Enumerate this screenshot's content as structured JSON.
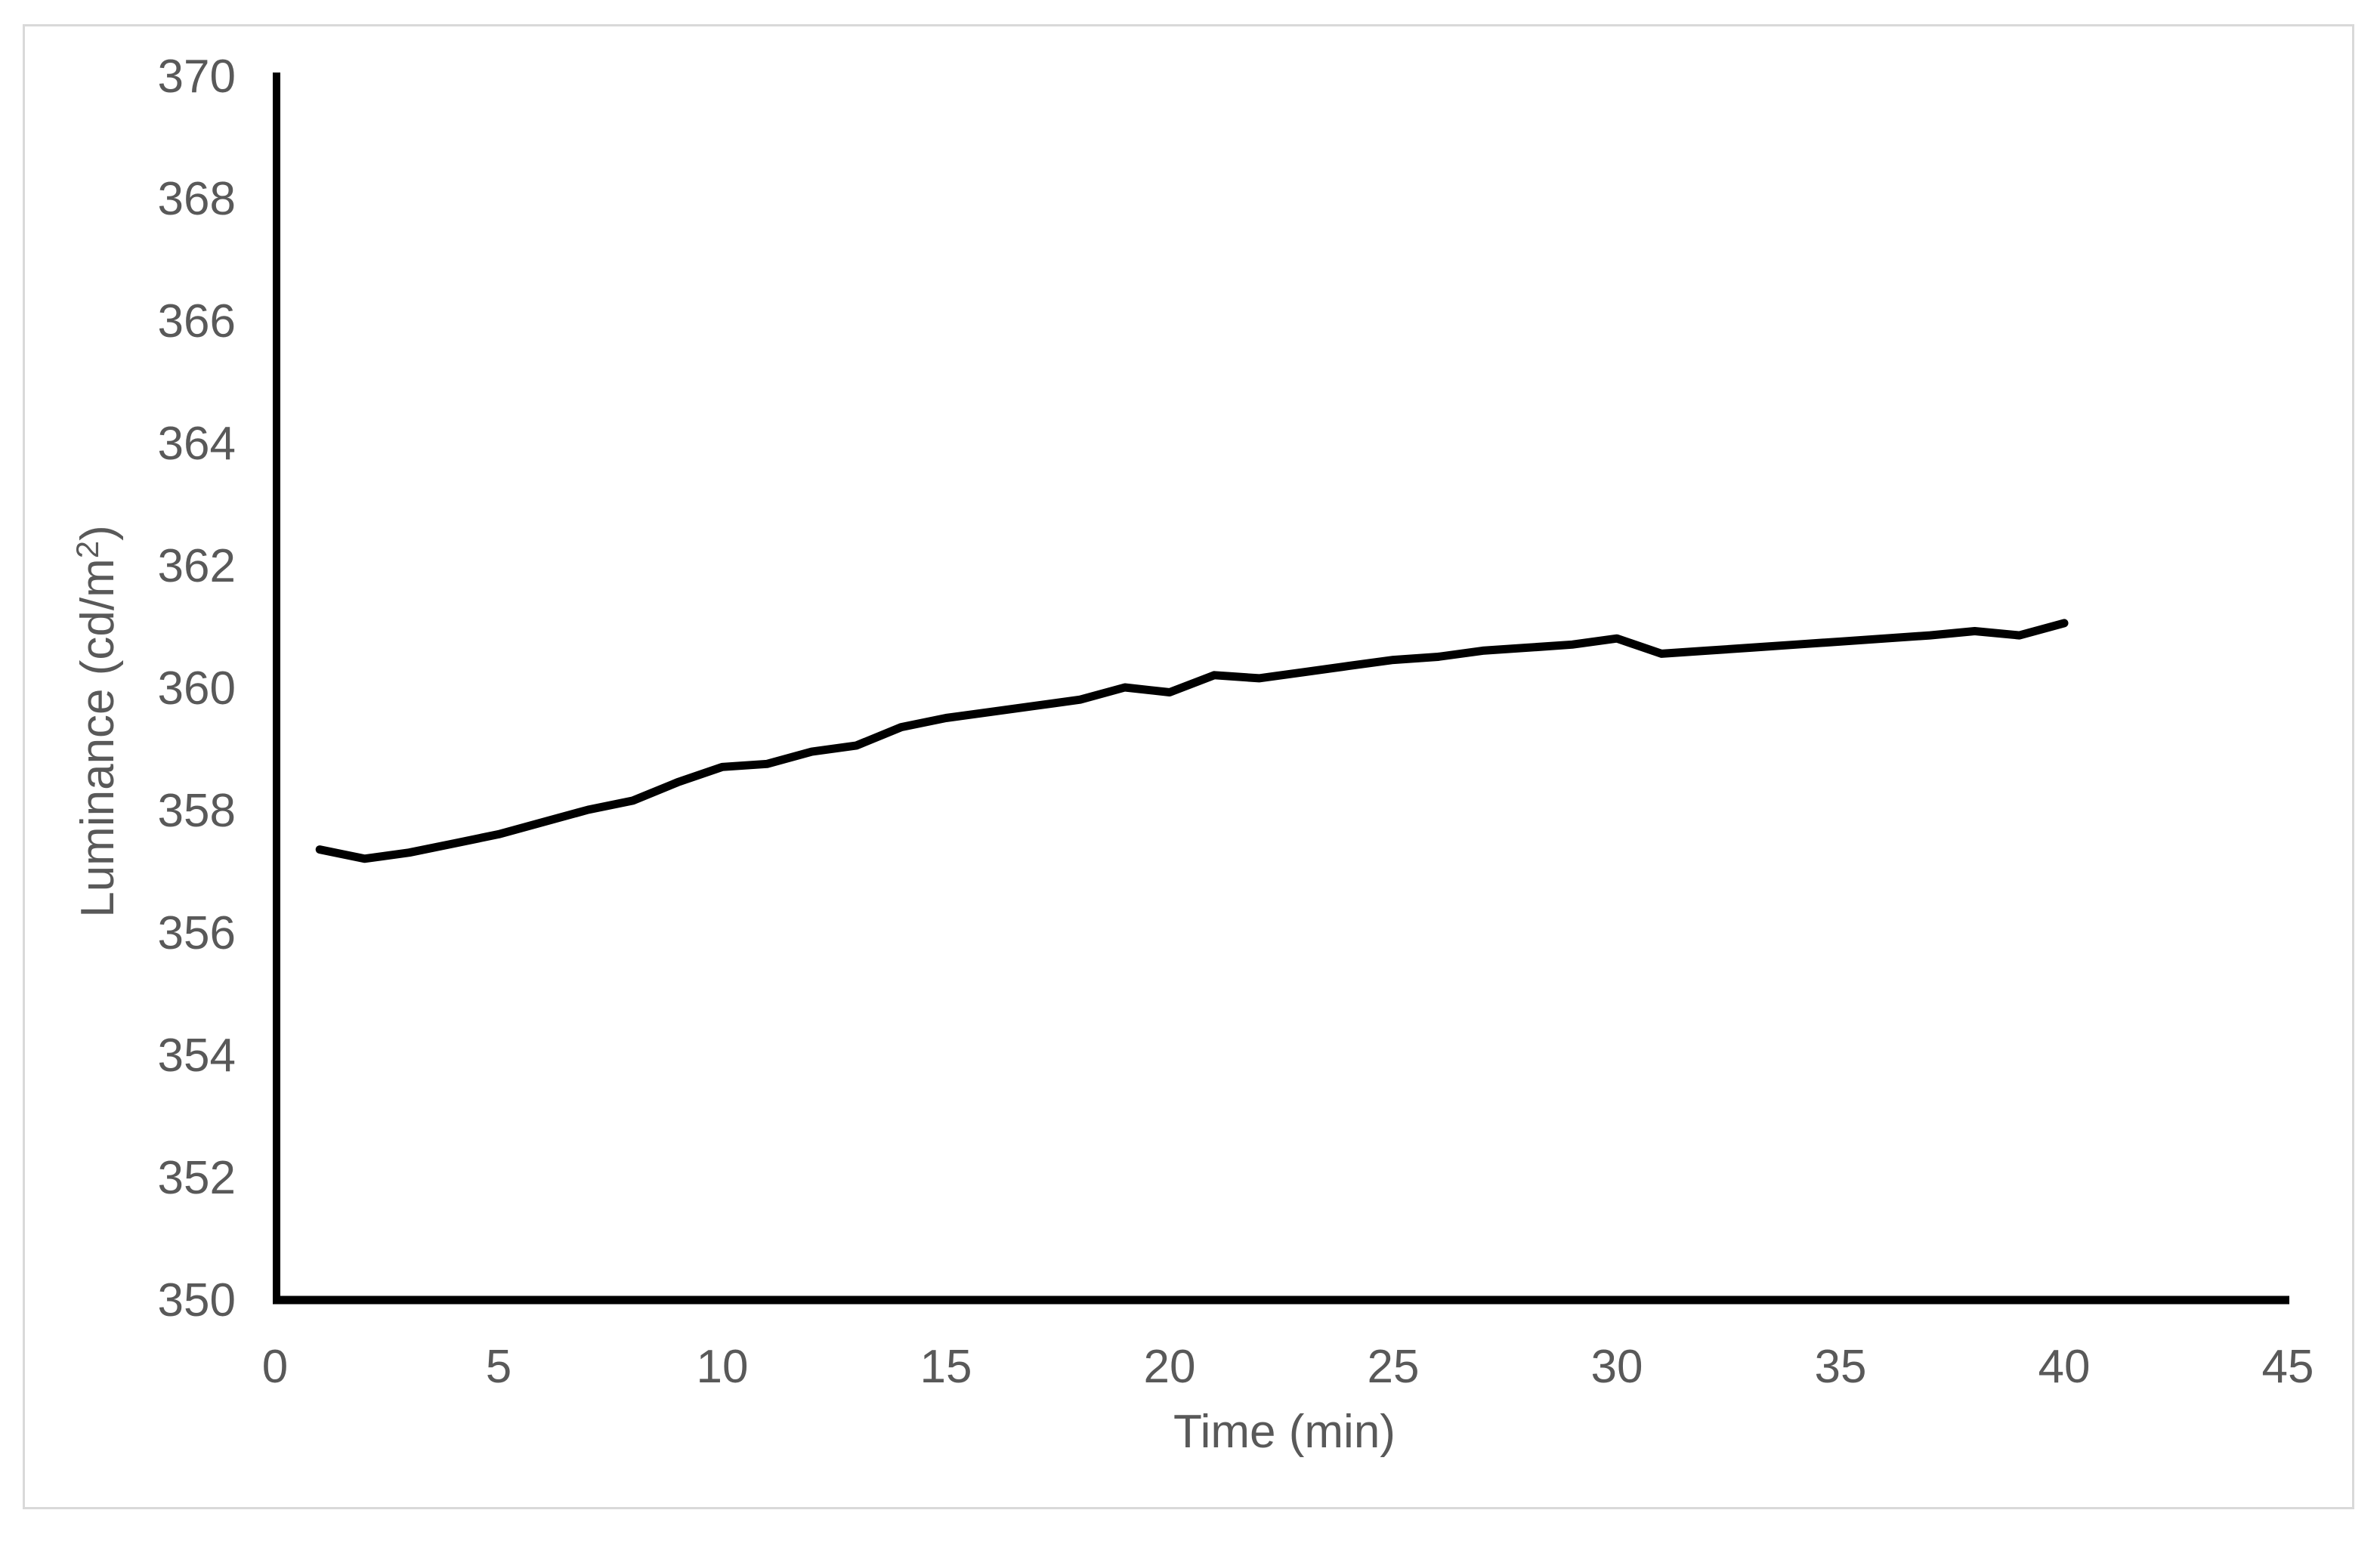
{
  "window": {
    "background_color": "#ffffff",
    "frame_border_color": "#d9d9d9"
  },
  "chart_data": {
    "type": "line",
    "title": "",
    "xlabel": "Time (min)",
    "ylabel": "Luminance (cd/m²)",
    "ylabel_parts": {
      "base": "Luminance (cd/m",
      "sup": "2",
      "close": ")"
    },
    "xlim": [
      0,
      45
    ],
    "ylim": [
      350,
      370
    ],
    "x_ticks": [
      0,
      5,
      10,
      15,
      20,
      25,
      30,
      35,
      40,
      45
    ],
    "y_ticks": [
      350,
      352,
      354,
      356,
      358,
      360,
      362,
      364,
      366,
      368,
      370
    ],
    "grid": false,
    "legend_position": "none",
    "axis_color": "#000000",
    "line_color": "#000000",
    "tick_label_color": "#595959",
    "series": [
      {
        "name": "Luminance",
        "x": [
          1,
          2,
          3,
          4,
          5,
          6,
          7,
          8,
          9,
          10,
          11,
          12,
          13,
          14,
          15,
          16,
          17,
          18,
          19,
          20,
          21,
          22,
          23,
          24,
          25,
          26,
          27,
          28,
          29,
          30,
          31,
          32,
          33,
          34,
          35,
          36,
          37,
          38,
          39,
          40
        ],
        "values": [
          357.35,
          357.2,
          357.3,
          357.45,
          357.6,
          357.8,
          358.0,
          358.15,
          358.45,
          358.7,
          358.75,
          358.95,
          359.05,
          359.35,
          359.5,
          359.6,
          359.7,
          359.8,
          360.0,
          359.92,
          360.2,
          360.15,
          360.25,
          360.35,
          360.45,
          360.5,
          360.6,
          360.65,
          360.7,
          360.8,
          360.55,
          360.6,
          360.65,
          360.7,
          360.75,
          360.8,
          360.85,
          360.92,
          360.85,
          361.05
        ]
      }
    ]
  }
}
